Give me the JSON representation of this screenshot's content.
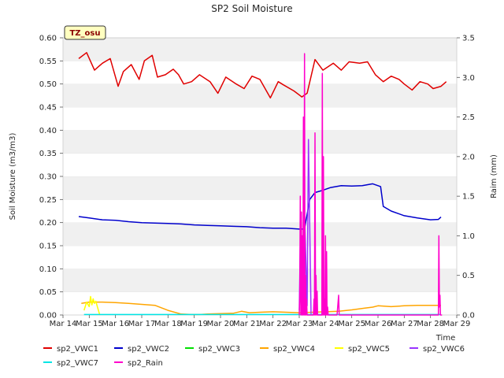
{
  "chart_data": {
    "type": "line",
    "title": "SP2 Soil Moisture",
    "badge": "TZ_osu",
    "xlabel": "Time",
    "ylabel": "Soil Moisture (m3/m3)",
    "y2label": "Raim (mm)",
    "xlim": [
      14,
      29
    ],
    "ylim": [
      0,
      0.6
    ],
    "y2lim": [
      0,
      3.5
    ],
    "x_ticks": [
      {
        "value": 14,
        "label": "Mar 14"
      },
      {
        "value": 15,
        "label": "Mar 15"
      },
      {
        "value": 16,
        "label": "Mar 16"
      },
      {
        "value": 17,
        "label": "Mar 17"
      },
      {
        "value": 18,
        "label": "Mar 18"
      },
      {
        "value": 19,
        "label": "Mar 19"
      },
      {
        "value": 20,
        "label": "Mar 20"
      },
      {
        "value": 21,
        "label": "Mar 21"
      },
      {
        "value": 22,
        "label": "Mar 22"
      },
      {
        "value": 23,
        "label": "Mar 23"
      },
      {
        "value": 24,
        "label": "Mar 24"
      },
      {
        "value": 25,
        "label": "Mar 25"
      },
      {
        "value": 26,
        "label": "Mar 26"
      },
      {
        "value": 27,
        "label": "Mar 27"
      },
      {
        "value": 28,
        "label": "Mar 28"
      },
      {
        "value": 29,
        "label": "Mar 29"
      }
    ],
    "y_ticks": [
      "0.00",
      "0.05",
      "0.10",
      "0.15",
      "0.20",
      "0.25",
      "0.30",
      "0.35",
      "0.40",
      "0.45",
      "0.50",
      "0.55",
      "0.60"
    ],
    "y2_ticks": [
      "0.0",
      "0.5",
      "1.0",
      "1.5",
      "2.0",
      "2.5",
      "3.0",
      "3.5"
    ],
    "grid": "horizontal bands",
    "legend_placement": "bottom",
    "series": [
      {
        "name": "sp2_VWC1",
        "color": "#e00000",
        "axis": "left",
        "x": [
          14.6,
          14.9,
          15.2,
          15.5,
          15.8,
          15.9,
          16.1,
          16.3,
          16.6,
          16.9,
          17.1,
          17.4,
          17.6,
          17.9,
          18.2,
          18.4,
          18.6,
          18.9,
          19.2,
          19.6,
          19.9,
          20.2,
          20.6,
          20.9,
          21.2,
          21.5,
          21.9,
          22.2,
          22.4,
          22.8,
          23.1,
          23.3,
          23.6,
          23.9,
          24.3,
          24.6,
          24.9,
          25.3,
          25.6,
          25.9,
          26.2,
          26.5,
          26.8,
          27.0,
          27.3,
          27.6,
          27.9,
          28.1,
          28.4,
          28.6
        ],
        "values": [
          0.555,
          0.568,
          0.53,
          0.545,
          0.555,
          0.535,
          0.495,
          0.527,
          0.542,
          0.51,
          0.55,
          0.562,
          0.515,
          0.52,
          0.532,
          0.52,
          0.5,
          0.505,
          0.52,
          0.505,
          0.48,
          0.515,
          0.5,
          0.49,
          0.517,
          0.51,
          0.47,
          0.505,
          0.498,
          0.485,
          0.472,
          0.48,
          0.553,
          0.53,
          0.545,
          0.53,
          0.548,
          0.545,
          0.548,
          0.52,
          0.505,
          0.517,
          0.51,
          0.5,
          0.487,
          0.505,
          0.5,
          0.49,
          0.495,
          0.505
        ]
      },
      {
        "name": "sp2_VWC2",
        "color": "#0000cc",
        "axis": "left",
        "x": [
          14.6,
          15.0,
          15.5,
          16.0,
          16.5,
          17.0,
          17.5,
          18.0,
          18.5,
          19.0,
          19.5,
          20.0,
          20.5,
          21.0,
          21.5,
          22.0,
          22.5,
          23.0,
          23.2,
          23.4,
          23.6,
          23.9,
          24.2,
          24.6,
          25.0,
          25.4,
          25.8,
          26.1,
          26.2,
          26.5,
          27.0,
          27.5,
          28.0,
          28.3,
          28.4
        ],
        "values": [
          0.213,
          0.21,
          0.206,
          0.205,
          0.202,
          0.2,
          0.199,
          0.198,
          0.197,
          0.195,
          0.194,
          0.193,
          0.192,
          0.191,
          0.189,
          0.188,
          0.188,
          0.186,
          0.186,
          0.25,
          0.265,
          0.27,
          0.276,
          0.28,
          0.279,
          0.28,
          0.284,
          0.278,
          0.235,
          0.225,
          0.215,
          0.21,
          0.206,
          0.207,
          0.212
        ]
      },
      {
        "name": "sp2_VWC3",
        "color": "#00e000",
        "axis": "left",
        "x": [],
        "values": []
      },
      {
        "name": "sp2_VWC4",
        "color": "#ffa500",
        "axis": "left",
        "x": [
          14.7,
          15.0,
          15.5,
          16.0,
          16.5,
          17.0,
          17.5,
          18.0,
          18.5,
          18.9,
          19.2,
          19.5,
          20.0,
          20.5,
          20.8,
          21.1,
          21.5,
          22.0,
          22.5,
          23.0,
          23.5,
          24.0,
          24.5,
          25.0,
          25.5,
          25.8,
          26.0,
          26.5,
          27.0,
          27.5,
          28.0,
          28.4
        ],
        "values": [
          0.025,
          0.028,
          0.028,
          0.027,
          0.025,
          0.023,
          0.021,
          0.01,
          0.002,
          0.001,
          0.001,
          0.002,
          0.003,
          0.004,
          0.008,
          0.005,
          0.006,
          0.007,
          0.006,
          0.005,
          0.006,
          0.007,
          0.008,
          0.011,
          0.015,
          0.017,
          0.02,
          0.018,
          0.02,
          0.021,
          0.021,
          0.021
        ]
      },
      {
        "name": "sp2_VWC5",
        "color": "#ffff00",
        "axis": "left",
        "x": [
          14.8,
          14.9,
          15.0,
          15.05,
          15.1,
          15.15,
          15.2,
          15.25,
          15.3,
          15.4
        ],
        "values": [
          0.01,
          0.028,
          0.018,
          0.04,
          0.022,
          0.035,
          0.025,
          0.03,
          0.02,
          0.0
        ]
      },
      {
        "name": "sp2_VWC6",
        "color": "#9933ff",
        "axis": "left",
        "x": [
          23.0,
          23.05,
          23.1,
          23.2,
          23.3,
          23.35,
          23.45
        ],
        "values": [
          0.01,
          0.2,
          0.015,
          0.22,
          0.02,
          0.38,
          0.0
        ]
      },
      {
        "name": "sp2_VWC7",
        "color": "#00e5e5",
        "axis": "left",
        "x": [
          14.8,
          15.5,
          16.5,
          17.5,
          18.5,
          19.5,
          20.5,
          21.5,
          22.5,
          23.5,
          24.5,
          25.5,
          26.5,
          27.5,
          28.4
        ],
        "values": [
          0.001,
          0.001,
          0.001,
          0.001,
          0.001,
          0.001,
          0.001,
          0.001,
          0.001,
          0.001,
          0.001,
          0.001,
          0.001,
          0.001,
          0.001
        ]
      },
      {
        "name": "sp2_Rain",
        "color": "#ff00cc",
        "axis": "right",
        "x": [
          23.0,
          23.02,
          23.04,
          23.06,
          23.08,
          23.1,
          23.12,
          23.14,
          23.16,
          23.18,
          23.2,
          23.22,
          23.24,
          23.26,
          23.28,
          23.3,
          23.32,
          23.34,
          23.36,
          23.38,
          23.4,
          23.42,
          23.44,
          23.5,
          23.52,
          23.54,
          23.56,
          23.58,
          23.6,
          23.62,
          23.64,
          23.66,
          23.68,
          23.7,
          23.72,
          23.74,
          23.76,
          23.78,
          23.8,
          23.82,
          23.84,
          23.86,
          23.88,
          23.9,
          23.92,
          23.94,
          23.96,
          23.98,
          24.0,
          24.02,
          24.04,
          24.06,
          24.08,
          24.1,
          24.12,
          24.14,
          24.16,
          24.18,
          24.2,
          24.22,
          24.24,
          24.26,
          24.28,
          24.3,
          24.32,
          24.34,
          24.36,
          24.38,
          24.4,
          24.42,
          24.44,
          24.5,
          24.52,
          24.54,
          24.56,
          24.58,
          24.6,
          28.3,
          28.32,
          28.34,
          28.36,
          28.38,
          28.4,
          28.42,
          28.44
        ],
        "values": [
          0,
          0.3,
          1.5,
          0,
          1.3,
          0,
          1.0,
          0,
          2.5,
          0,
          3.3,
          0,
          0.5,
          0,
          0.2,
          0,
          0,
          0,
          0,
          0,
          0,
          0,
          0,
          0,
          0,
          0,
          0.2,
          0,
          2.3,
          0,
          0.5,
          0,
          0.3,
          0,
          0,
          0,
          0,
          0,
          0,
          0,
          0,
          0,
          3.05,
          0,
          2.0,
          0,
          0.2,
          0,
          1.0,
          0,
          0.8,
          0,
          0.1,
          0,
          0,
          0,
          0,
          0,
          0,
          0,
          0,
          0,
          0,
          0,
          0,
          0,
          0,
          0,
          0,
          0,
          0,
          0.25,
          0,
          0,
          0,
          0,
          0,
          0,
          1.0,
          0.1,
          0.25,
          0,
          0,
          0,
          0
        ]
      }
    ]
  }
}
